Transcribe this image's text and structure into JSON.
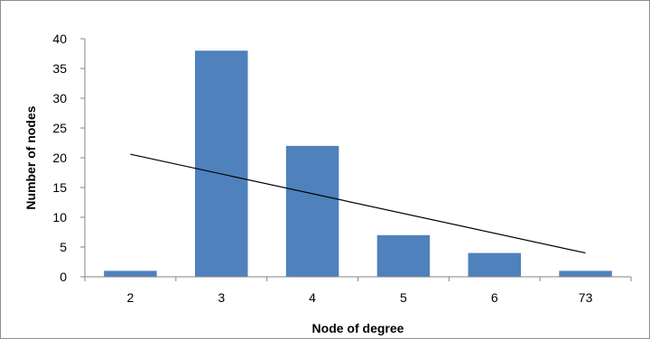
{
  "chart_data": {
    "type": "bar",
    "title": "",
    "xlabel": "Node of degree",
    "ylabel": "Number of nodes",
    "categories": [
      "2",
      "3",
      "4",
      "5",
      "6",
      "73"
    ],
    "series": [
      {
        "values": [
          1,
          38,
          22,
          7,
          4,
          1
        ],
        "color": "#4f81bd"
      }
    ],
    "trendline": {
      "type": "linear",
      "start": {
        "category": "2",
        "value": 20.6
      },
      "end": {
        "category": "73",
        "value": 4
      },
      "color": "#000000"
    },
    "ylim": [
      0,
      40
    ],
    "yticks": [
      0,
      5,
      10,
      15,
      20,
      25,
      30,
      35,
      40
    ],
    "grid": false,
    "legend": "none"
  }
}
